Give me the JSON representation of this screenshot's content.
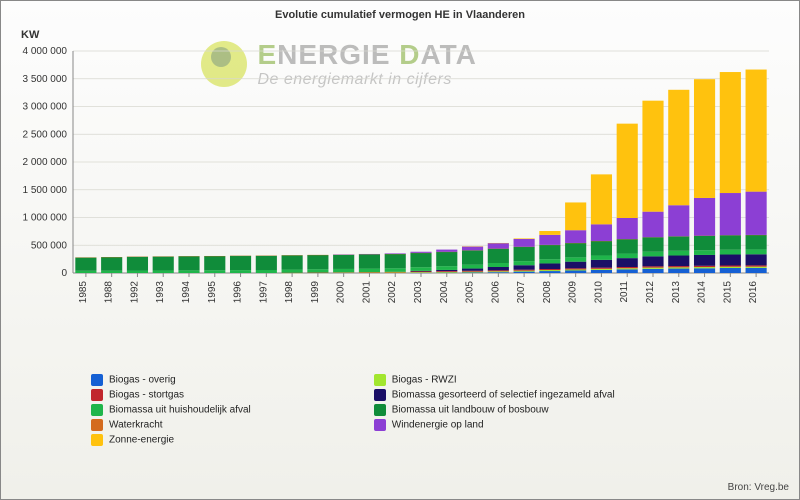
{
  "chart": {
    "type": "stacked-bar",
    "title": "Evolutie cumulatief vermogen HE in Vlaanderen",
    "ylabel": "KW",
    "source": "Bron: Vreg.be",
    "background_gradient_top": "#fdfdfd",
    "background_gradient_bottom": "#f0f0ea",
    "grid_color": "#d8d8d0",
    "axis_color": "#888888",
    "label_fontsize": 10,
    "title_fontsize": 11,
    "ylim": [
      0,
      4000000
    ],
    "ytick_step": 500000,
    "yticks": [
      "0",
      "500 000",
      "1 000 000",
      "1 500 000",
      "2 000 000",
      "2 500 000",
      "3 000 000",
      "3 500 000",
      "4 000 000"
    ],
    "categories": [
      "1985",
      "1988",
      "1992",
      "1993",
      "1994",
      "1995",
      "1996",
      "1997",
      "1998",
      "1999",
      "2000",
      "2001",
      "2002",
      "2003",
      "2004",
      "2005",
      "2006",
      "2007",
      "2008",
      "2009",
      "2010",
      "2011",
      "2012",
      "2013",
      "2014",
      "2015",
      "2016"
    ],
    "bar_gap_ratio": 0.18,
    "watermark": {
      "line1_part1": "E",
      "line1_part2": "NERGIE ",
      "line1_part3": "D",
      "line1_part4": "ATA",
      "line2": "De energiemarkt in cijfers",
      "dot_outer": "#cddc2b",
      "dot_inner": "#6b8e23"
    },
    "series": [
      {
        "key": "biogas_overig",
        "label": "Biogas - overig",
        "color": "#1560d4"
      },
      {
        "key": "biogas_rwzi",
        "label": "Biogas - RWZI",
        "color": "#a2e62e"
      },
      {
        "key": "biogas_stortgas",
        "label": "Biogas - stortgas",
        "color": "#c1272d"
      },
      {
        "key": "biomassa_afval_sel",
        "label": "Biomassa gesorteerd of selectief ingezameld afval",
        "color": "#1a0f66"
      },
      {
        "key": "biomassa_huishoud",
        "label": "Biomassa uit huishoudelijk afval",
        "color": "#1fb54a"
      },
      {
        "key": "biomassa_landbos",
        "label": "Biomassa uit landbouw of bosbouw",
        "color": "#108c3a"
      },
      {
        "key": "waterkracht",
        "label": "Waterkracht",
        "color": "#d46b1f"
      },
      {
        "key": "windenergie",
        "label": "Windenergie op land",
        "color": "#8c3fd4"
      },
      {
        "key": "zonne",
        "label": "Zonne-energie",
        "color": "#ffc20e"
      }
    ],
    "legend_layout": [
      [
        "biogas_overig",
        "biogas_rwzi"
      ],
      [
        "biogas_stortgas",
        "biomassa_afval_sel"
      ],
      [
        "biomassa_huishoud",
        "biomassa_landbos"
      ],
      [
        "waterkracht",
        "windenergie"
      ],
      [
        "zonne",
        null
      ]
    ],
    "data": {
      "biogas_overig": [
        0,
        0,
        0,
        0,
        0,
        0,
        0,
        0,
        0,
        0,
        0,
        0,
        0,
        3000,
        6000,
        9000,
        15000,
        25000,
        35000,
        45000,
        55000,
        65000,
        75000,
        80000,
        85000,
        90000,
        92000
      ],
      "biogas_rwzi": [
        0,
        0,
        0,
        0,
        0,
        0,
        0,
        0,
        2000,
        4000,
        6000,
        8000,
        10000,
        12000,
        14000,
        15000,
        16000,
        17000,
        18000,
        19000,
        20000,
        21000,
        22000,
        22000,
        22000,
        22000,
        22000
      ],
      "biogas_stortgas": [
        0,
        0,
        0,
        0,
        0,
        0,
        0,
        0,
        3000,
        5000,
        7000,
        9000,
        11000,
        13000,
        15000,
        16000,
        17000,
        18000,
        19000,
        20000,
        21000,
        22000,
        23000,
        23000,
        23000,
        23000,
        23000
      ],
      "biomassa_afval_sel": [
        0,
        0,
        0,
        0,
        0,
        0,
        0,
        0,
        0,
        0,
        0,
        0,
        0,
        10000,
        20000,
        40000,
        60000,
        80000,
        100000,
        120000,
        140000,
        160000,
        180000,
        190000,
        195000,
        198000,
        200000
      ],
      "biomassa_huishoud": [
        40000,
        42000,
        44000,
        46000,
        48000,
        50000,
        52000,
        54000,
        56000,
        58000,
        60000,
        62000,
        64000,
        66000,
        68000,
        70000,
        72000,
        74000,
        76000,
        78000,
        80000,
        82000,
        84000,
        85000,
        86000,
        87000,
        88000
      ],
      "biomassa_landbos": [
        240000,
        245000,
        250000,
        252000,
        254000,
        256000,
        258000,
        258000,
        258000,
        258000,
        258000,
        258000,
        258000,
        258000,
        258000,
        258000,
        258000,
        258000,
        258000,
        258000,
        260000,
        260000,
        260000,
        260000,
        260000,
        260000,
        260000
      ],
      "waterkracht": [
        500,
        500,
        500,
        600,
        600,
        700,
        700,
        800,
        800,
        900,
        900,
        1000,
        1000,
        1000,
        1000,
        1000,
        1000,
        1000,
        1000,
        1000,
        1000,
        1000,
        1000,
        1000,
        1000,
        1000,
        1000
      ],
      "windenergie": [
        0,
        0,
        0,
        0,
        0,
        0,
        0,
        0,
        0,
        0,
        2000,
        5000,
        10000,
        20000,
        40000,
        70000,
        100000,
        140000,
        180000,
        230000,
        300000,
        380000,
        460000,
        560000,
        680000,
        760000,
        780000
      ],
      "zonne": [
        0,
        0,
        0,
        0,
        0,
        0,
        0,
        0,
        0,
        0,
        0,
        0,
        0,
        0,
        0,
        500,
        2000,
        10000,
        70000,
        500000,
        900000,
        1700000,
        2000000,
        2080000,
        2140000,
        2180000,
        2200000
      ]
    }
  }
}
